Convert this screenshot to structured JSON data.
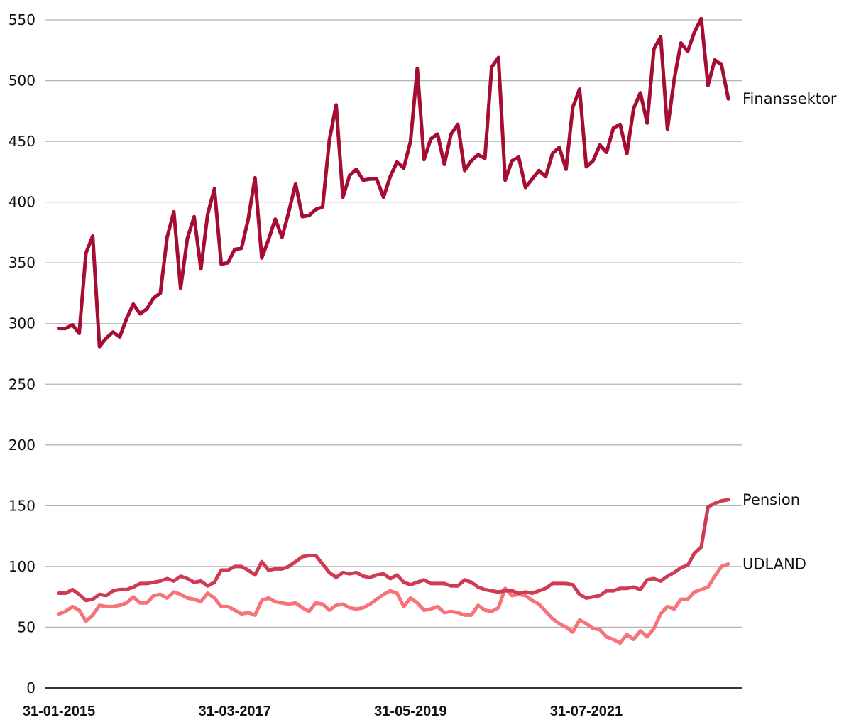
{
  "chart_data": {
    "type": "line",
    "title": "",
    "xlabel": "",
    "ylabel": "",
    "ylim": [
      0,
      550
    ],
    "yticks": [
      0,
      50,
      100,
      150,
      200,
      250,
      300,
      350,
      400,
      450,
      500,
      550
    ],
    "grid": true,
    "legend": "direct labels at right end of lines",
    "xticks": [
      {
        "index": 0,
        "label": "31-01-2015"
      },
      {
        "index": 26,
        "label": "31-03-2017"
      },
      {
        "index": 52,
        "label": "31-05-2019"
      },
      {
        "index": 78,
        "label": "31-07-2021"
      }
    ],
    "x_start": "2015-01-31",
    "x_end": "2023-04-30",
    "x_frequency": "monthly (end of month)",
    "series": [
      {
        "name": "Finanssektor",
        "color": "#a50d33",
        "values": [
          296,
          296,
          299,
          292,
          358,
          372,
          281,
          288,
          293,
          289,
          304,
          316,
          308,
          312,
          321,
          325,
          371,
          392,
          329,
          370,
          388,
          345,
          390,
          411,
          349,
          350,
          361,
          362,
          386,
          420,
          354,
          369,
          386,
          371,
          392,
          415,
          388,
          389,
          394,
          396,
          451,
          480,
          404,
          422,
          427,
          418,
          419,
          419,
          404,
          421,
          433,
          428,
          450,
          510,
          435,
          452,
          456,
          431,
          456,
          464,
          426,
          434,
          439,
          436,
          511,
          519,
          418,
          434,
          437,
          412,
          419,
          426,
          421,
          440,
          445,
          427,
          478,
          493,
          429,
          434,
          447,
          441,
          461,
          464,
          440,
          477,
          490,
          465,
          526,
          536,
          460,
          501,
          531,
          524,
          540,
          551,
          496,
          517,
          513,
          485
        ]
      },
      {
        "name": "Pension",
        "color": "#cf3b52",
        "values": [
          78,
          78,
          81,
          77,
          72,
          73,
          77,
          76,
          80,
          81,
          81,
          83,
          86,
          86,
          87,
          88,
          90,
          88,
          92,
          90,
          87,
          88,
          84,
          87,
          97,
          97,
          100,
          100,
          97,
          93,
          104,
          97,
          98,
          98,
          100,
          104,
          108,
          109,
          109,
          102,
          95,
          91,
          95,
          94,
          95,
          92,
          91,
          93,
          94,
          90,
          93,
          87,
          85,
          87,
          89,
          86,
          86,
          86,
          84,
          84,
          89,
          87,
          83,
          81,
          80,
          79,
          80,
          80,
          78,
          79,
          78,
          80,
          82,
          86,
          86,
          86,
          85,
          77,
          74,
          75,
          76,
          80,
          80,
          82,
          82,
          83,
          81,
          89,
          90,
          88,
          92,
          95,
          99,
          101,
          111,
          116,
          149,
          152,
          154,
          155
        ]
      },
      {
        "name": "UDLAND",
        "color": "#f57379",
        "values": [
          61,
          63,
          67,
          64,
          55,
          60,
          68,
          67,
          67,
          68,
          70,
          75,
          70,
          70,
          76,
          77,
          74,
          79,
          77,
          74,
          73,
          71,
          78,
          74,
          67,
          67,
          64,
          61,
          62,
          60,
          72,
          74,
          71,
          70,
          69,
          70,
          66,
          63,
          70,
          69,
          64,
          68,
          69,
          66,
          65,
          66,
          69,
          73,
          77,
          80,
          78,
          67,
          74,
          70,
          64,
          65,
          67,
          62,
          63,
          62,
          60,
          60,
          68,
          64,
          63,
          66,
          82,
          76,
          77,
          76,
          72,
          69,
          63,
          57,
          53,
          50,
          46,
          56,
          53,
          49,
          48,
          42,
          40,
          37,
          44,
          40,
          47,
          42,
          49,
          61,
          67,
          65,
          73,
          73,
          79,
          81,
          83,
          92,
          100,
          102
        ]
      }
    ]
  }
}
